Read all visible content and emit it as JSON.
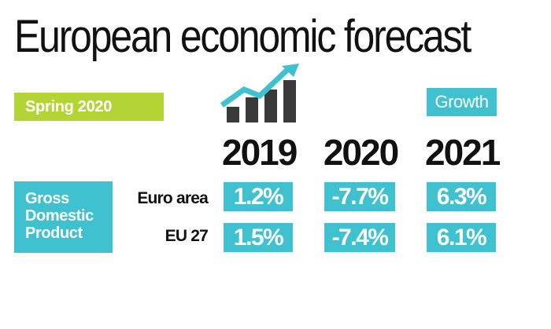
{
  "title": "European economic forecast",
  "edition": "Spring 2020",
  "growth_label": "Growth",
  "icon": "growth-chart-icon",
  "years": [
    "2019",
    "2020",
    "2021"
  ],
  "indicator": {
    "lines": [
      "Gross",
      "Domestic",
      "Product"
    ]
  },
  "rows": [
    {
      "label": "Euro area",
      "values": [
        "1.2%",
        "-7.7%",
        "6.3%"
      ]
    },
    {
      "label": "EU 27",
      "values": [
        "1.5%",
        "-7.4%",
        "6.1%"
      ]
    }
  ],
  "colors": {
    "accent_teal": "#3fc1cf",
    "accent_green": "#b4d334",
    "icon_dark": "#3a3a3a"
  }
}
